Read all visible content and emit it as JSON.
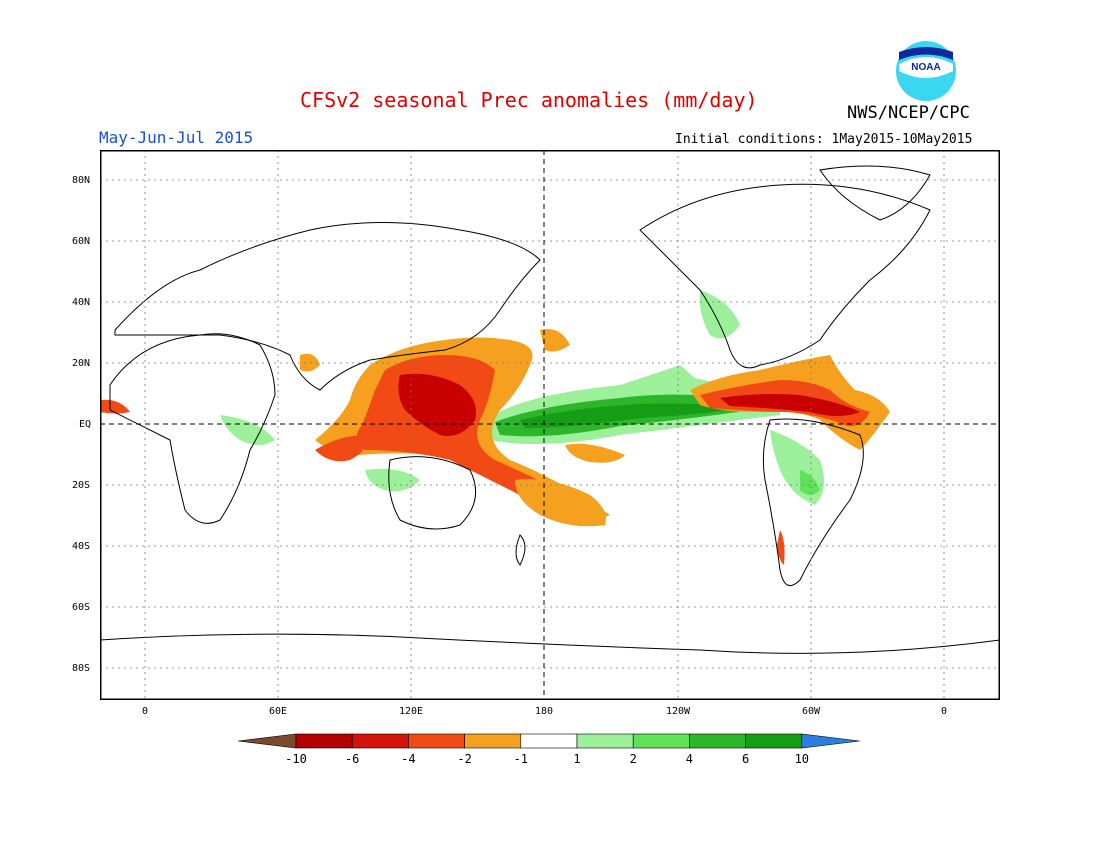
{
  "title": "CFSv2 seasonal Prec anomalies (mm/day)",
  "agency": "NWS/NCEP/CPC",
  "logo_text": "NOAA",
  "period": "May-Jun-Jul 2015",
  "initial_conditions": "Initial conditions: 1May2015-10May2015",
  "lat_labels": [
    "80N",
    "60N",
    "40N",
    "20N",
    "EQ",
    "20S",
    "40S",
    "60S",
    "80S"
  ],
  "lon_labels": [
    "0",
    "60E",
    "120E",
    "180",
    "120W",
    "60W",
    "0"
  ],
  "colorbar": {
    "labels": [
      "-10",
      "-6",
      "-4",
      "-2",
      "-1",
      "1",
      "2",
      "4",
      "6",
      "10"
    ],
    "colors": [
      "#7b4a2e",
      "#b40000",
      "#d4140a",
      "#f24a14",
      "#f5a11f",
      "#ffffff",
      "#9df09a",
      "#5ee35a",
      "#2db62a",
      "#159e15",
      "#2a7fe0"
    ]
  },
  "colors": {
    "title": "#e00000",
    "period": "#1a4fd6",
    "wet_strong": "#159e15",
    "wet_mid": "#2db62a",
    "wet_light": "#9df09a",
    "dry_light": "#f5a11f",
    "dry_mid": "#f24a14",
    "dry_strong": "#c80000"
  }
}
